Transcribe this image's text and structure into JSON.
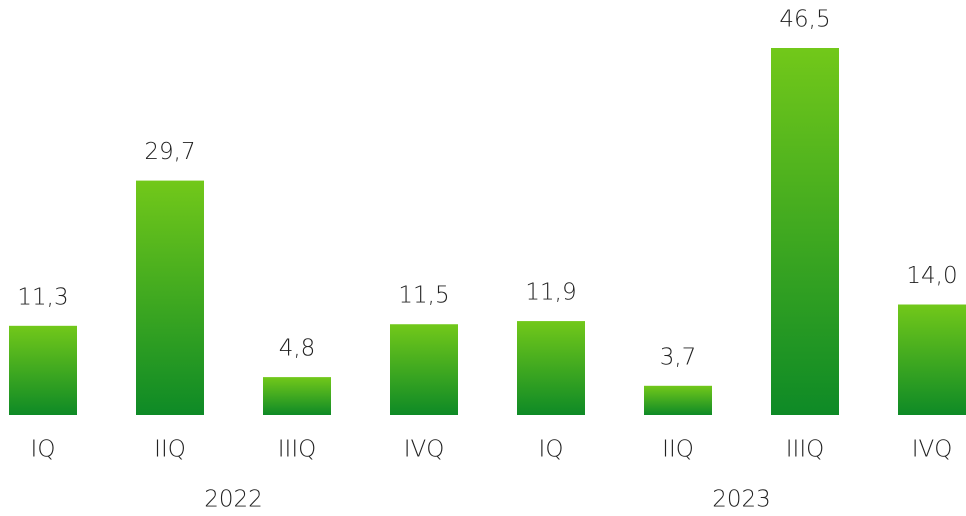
{
  "chart_data": {
    "type": "bar",
    "categories": [
      "IQ",
      "IIQ",
      "IIIQ",
      "IVQ",
      "IQ",
      "IIQ",
      "IIIQ",
      "IVQ"
    ],
    "groups": [
      "2022",
      "2023"
    ],
    "values": [
      11.3,
      29.7,
      4.8,
      11.5,
      11.9,
      3.7,
      46.5,
      14.0
    ],
    "value_labels": [
      "11,3",
      "29,7",
      "4,8",
      "11,5",
      "11,9",
      "3,7",
      "46,5",
      "14,0"
    ],
    "color": [
      "#72c81a",
      "#0e8a26"
    ]
  }
}
